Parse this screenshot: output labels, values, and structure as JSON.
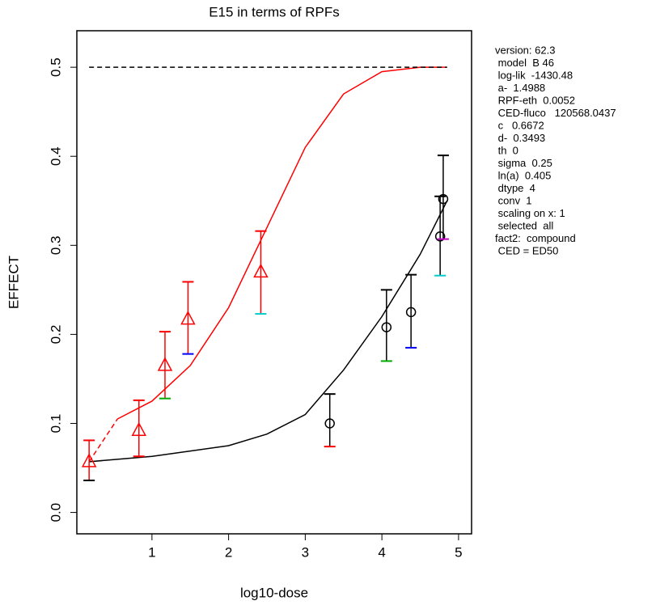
{
  "chart_data": {
    "type": "scatter",
    "title": "E15 in terms of RPFs",
    "x_label": "log10-dose",
    "y_label": "EFFECT",
    "xlim": [
      0.02,
      5.17
    ],
    "ylim": [
      -0.024,
      0.541
    ],
    "xticks": [
      1,
      2,
      3,
      4,
      5
    ],
    "yticks": [
      {
        "value": 0,
        "label": "0.0"
      },
      0.1,
      0.2,
      0.3,
      0.4,
      0.5
    ],
    "series": [
      {
        "color": "#ff0000",
        "marker": "triangle",
        "x": [
          0.18,
          0.83,
          1.17,
          1.47,
          2.42
        ],
        "values": [
          0.057,
          0.092,
          0.165,
          0.217,
          0.27
        ],
        "upper": [
          0.081,
          0.126,
          0.203,
          0.259,
          0.316
        ],
        "lower": [
          0.036,
          0.063,
          0.128,
          0.178,
          0.223
        ],
        "lower_cap_colors": [
          "#000000",
          "#ff0000",
          "#00aa00",
          "#0000ff",
          "#00cccc"
        ]
      },
      {
        "color": "#000000",
        "marker": "circle",
        "x": [
          3.32,
          4.06,
          4.38,
          4.76,
          4.8
        ],
        "values": [
          0.1,
          0.208,
          0.225,
          0.31,
          0.352
        ],
        "upper": [
          0.133,
          0.25,
          0.267,
          0.355,
          0.401
        ],
        "lower": [
          0.074,
          0.17,
          0.185,
          0.266,
          0.307
        ],
        "lower_cap_colors": [
          "#ff0000",
          "#00aa00",
          "#0000ff",
          "#00cccc",
          "#cc00cc"
        ]
      }
    ],
    "curves": [
      {
        "color": "#ff0000",
        "style": "dashed",
        "x": [
          0.18,
          0.55
        ],
        "values": [
          0.057,
          0.105
        ]
      },
      {
        "color": "#ff0000",
        "style": "solid",
        "x": [
          0.55,
          1.0,
          1.5,
          2.0,
          2.5,
          3.0,
          3.5,
          4.0,
          4.5,
          4.85
        ],
        "values": [
          0.105,
          0.125,
          0.165,
          0.23,
          0.32,
          0.41,
          0.47,
          0.495,
          0.5,
          0.5
        ]
      },
      {
        "color": "#000000",
        "style": "solid",
        "x": [
          0.18,
          1.0,
          2.0,
          2.5,
          3.0,
          3.5,
          4.0,
          4.5,
          4.85
        ],
        "values": [
          0.057,
          0.063,
          0.075,
          0.088,
          0.11,
          0.16,
          0.22,
          0.29,
          0.35
        ]
      },
      {
        "color": "#000000",
        "style": "dashed",
        "x": [
          0.18,
          4.85
        ],
        "values": [
          0.5,
          0.5
        ]
      }
    ],
    "info_lines": [
      "version: 62.3",
      " model  B 46",
      " log-lik  -1430.48",
      " a-  1.4988",
      " RPF-eth  0.0052",
      " CED-fluco   120568.0437",
      " c   0.6672",
      " d-  0.3493",
      " th  0",
      " sigma  0.25",
      " ln(a)  0.405",
      " dtype  4",
      " conv  1",
      " scaling on x: 1",
      " selected  all",
      "fact2:  compound",
      " CED = ED50"
    ]
  }
}
